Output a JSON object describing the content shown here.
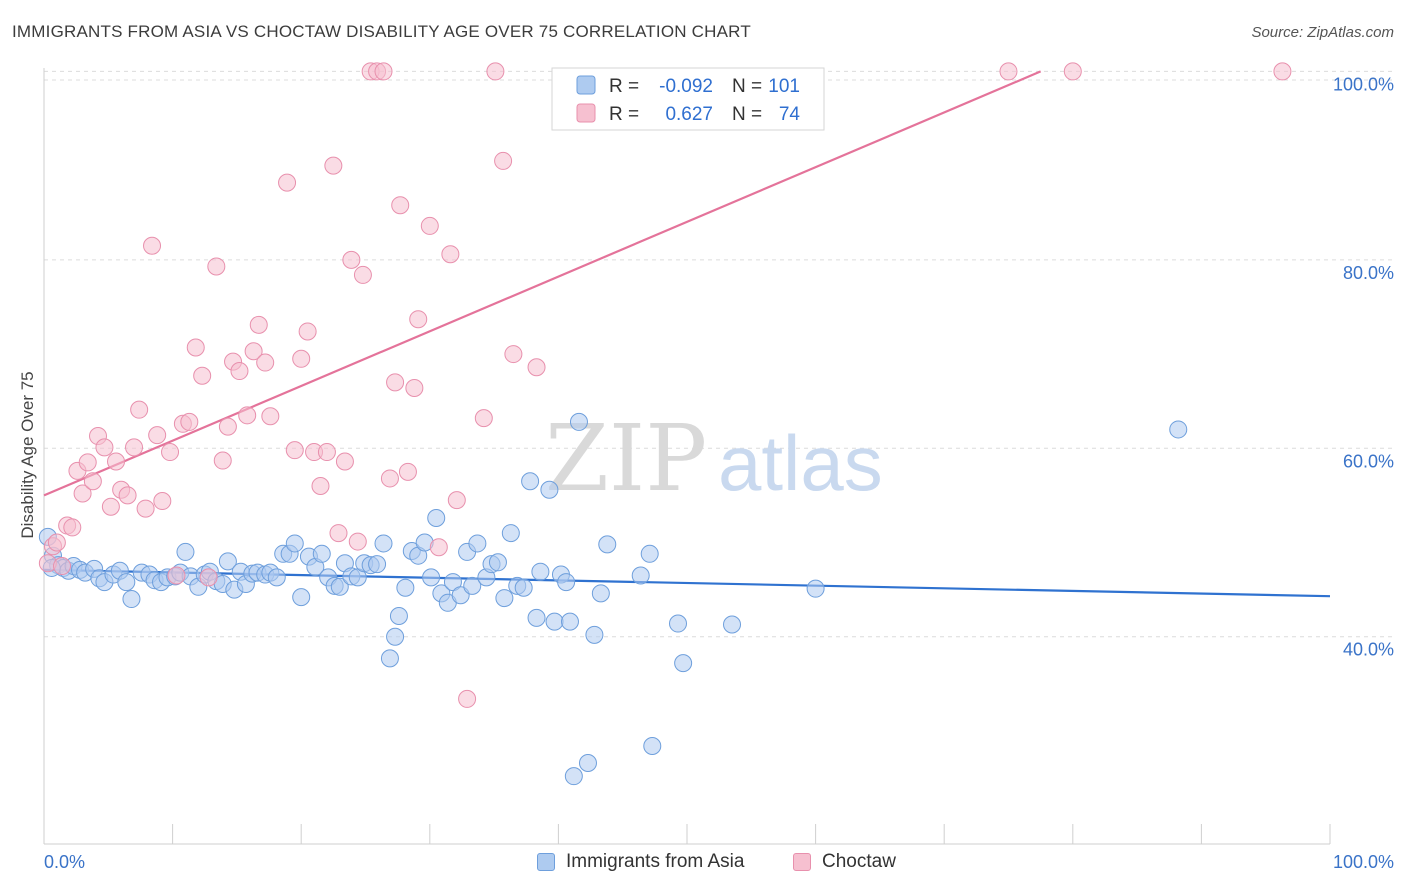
{
  "header": {
    "title": "IMMIGRANTS FROM ASIA VS CHOCTAW DISABILITY AGE OVER 75 CORRELATION CHART",
    "source": "Source: ZipAtlas.com"
  },
  "watermark": {
    "zip": "ZIP",
    "atlas": "atlas"
  },
  "legend_top": {
    "rows": [
      {
        "r_label": "R =",
        "r_value": "-0.092",
        "n_label": "N =",
        "n_value": "101"
      },
      {
        "r_label": "R =",
        "r_value": "0.627",
        "n_label": "N =",
        "n_value": "74"
      }
    ]
  },
  "colors": {
    "asia_fill": "#aecbf0",
    "asia_stroke": "#6e9fdc",
    "asia_line": "#2f72d0",
    "choctaw_fill": "#f6c0d0",
    "choctaw_stroke": "#e890ad",
    "choctaw_line": "#e4739a",
    "tick_label": "#3a73c8",
    "grid": "#dcdcdc"
  },
  "chart_data": {
    "type": "scatter",
    "title": "IMMIGRANTS FROM ASIA VS CHOCTAW DISABILITY AGE OVER 75 CORRELATION CHART",
    "xlabel": "",
    "ylabel": "Disability Age Over 75",
    "xlim": [
      0,
      100
    ],
    "ylim": [
      18,
      101
    ],
    "x_tick_labels": [
      "0.0%",
      "100.0%"
    ],
    "y_ticks": [
      40,
      60,
      80,
      100
    ],
    "y_tick_labels": [
      "40.0%",
      "60.0%",
      "80.0%",
      "100.0%"
    ],
    "grid": true,
    "legend_position": "top-center",
    "series": [
      {
        "name": "Immigrants from Asia",
        "r": -0.092,
        "n": 101,
        "trend": {
          "x": [
            0,
            100
          ],
          "y": [
            47.1,
            44.3
          ]
        },
        "points": [
          [
            0.3,
            50.6
          ],
          [
            0.7,
            48.6
          ],
          [
            1.1,
            47.6
          ],
          [
            1.5,
            47.3
          ],
          [
            1.9,
            47.0
          ],
          [
            2.3,
            47.5
          ],
          [
            2.8,
            47.1
          ],
          [
            3.2,
            46.8
          ],
          [
            3.9,
            47.2
          ],
          [
            4.3,
            46.2
          ],
          [
            4.7,
            45.8
          ],
          [
            5.4,
            46.6
          ],
          [
            5.9,
            47.0
          ],
          [
            6.4,
            45.8
          ],
          [
            6.8,
            44.0
          ],
          [
            7.6,
            46.8
          ],
          [
            8.2,
            46.6
          ],
          [
            8.6,
            46.0
          ],
          [
            9.1,
            45.8
          ],
          [
            9.6,
            46.3
          ],
          [
            10.2,
            46.4
          ],
          [
            10.6,
            46.8
          ],
          [
            11.0,
            49.0
          ],
          [
            11.4,
            46.4
          ],
          [
            12.0,
            45.3
          ],
          [
            12.5,
            46.6
          ],
          [
            12.9,
            46.9
          ],
          [
            13.4,
            45.9
          ],
          [
            13.9,
            45.6
          ],
          [
            14.3,
            48.0
          ],
          [
            14.8,
            45.0
          ],
          [
            15.3,
            46.9
          ],
          [
            15.7,
            45.6
          ],
          [
            16.2,
            46.7
          ],
          [
            16.6,
            46.8
          ],
          [
            17.2,
            46.6
          ],
          [
            17.6,
            46.8
          ],
          [
            18.1,
            46.3
          ],
          [
            18.6,
            48.8
          ],
          [
            19.1,
            48.8
          ],
          [
            19.5,
            49.9
          ],
          [
            20.0,
            44.2
          ],
          [
            20.6,
            48.5
          ],
          [
            21.1,
            47.4
          ],
          [
            21.6,
            48.8
          ],
          [
            22.1,
            46.3
          ],
          [
            22.6,
            45.4
          ],
          [
            23.0,
            45.3
          ],
          [
            23.4,
            47.8
          ],
          [
            23.9,
            46.4
          ],
          [
            24.4,
            46.3
          ],
          [
            24.9,
            47.8
          ],
          [
            25.4,
            47.6
          ],
          [
            25.9,
            47.7
          ],
          [
            26.4,
            49.9
          ],
          [
            26.9,
            37.7
          ],
          [
            27.3,
            40.0
          ],
          [
            27.6,
            42.2
          ],
          [
            28.1,
            45.2
          ],
          [
            28.6,
            49.1
          ],
          [
            29.1,
            48.6
          ],
          [
            29.6,
            50.0
          ],
          [
            30.1,
            46.3
          ],
          [
            30.5,
            52.6
          ],
          [
            30.9,
            44.6
          ],
          [
            31.4,
            43.6
          ],
          [
            31.8,
            45.8
          ],
          [
            32.4,
            44.4
          ],
          [
            32.9,
            49.0
          ],
          [
            33.3,
            45.4
          ],
          [
            33.7,
            49.9
          ],
          [
            34.4,
            46.3
          ],
          [
            34.8,
            47.7
          ],
          [
            35.3,
            47.9
          ],
          [
            35.8,
            44.1
          ],
          [
            36.3,
            51.0
          ],
          [
            36.8,
            45.4
          ],
          [
            37.3,
            45.2
          ],
          [
            37.8,
            56.5
          ],
          [
            38.3,
            42.0
          ],
          [
            38.6,
            46.9
          ],
          [
            39.3,
            55.6
          ],
          [
            39.7,
            41.6
          ],
          [
            40.2,
            46.6
          ],
          [
            40.6,
            45.8
          ],
          [
            40.9,
            41.6
          ],
          [
            41.2,
            25.2
          ],
          [
            41.6,
            62.8
          ],
          [
            42.3,
            26.6
          ],
          [
            42.8,
            40.2
          ],
          [
            43.3,
            44.6
          ],
          [
            43.8,
            49.8
          ],
          [
            46.4,
            46.5
          ],
          [
            47.1,
            48.8
          ],
          [
            47.3,
            28.4
          ],
          [
            49.3,
            41.4
          ],
          [
            49.7,
            37.2
          ],
          [
            53.5,
            41.3
          ],
          [
            88.2,
            62.0
          ],
          [
            60.0,
            45.1
          ],
          [
            0.6,
            47.3
          ]
        ]
      },
      {
        "name": "Choctaw",
        "r": 0.627,
        "n": 74,
        "trend": {
          "x": [
            0,
            77.5
          ],
          "y": [
            55.0,
            100.0
          ]
        },
        "points": [
          [
            0.3,
            47.8
          ],
          [
            0.7,
            49.6
          ],
          [
            1.0,
            50.0
          ],
          [
            1.4,
            47.5
          ],
          [
            1.8,
            51.8
          ],
          [
            2.2,
            51.6
          ],
          [
            2.6,
            57.6
          ],
          [
            3.0,
            55.2
          ],
          [
            3.4,
            58.5
          ],
          [
            3.8,
            56.5
          ],
          [
            4.2,
            61.3
          ],
          [
            4.7,
            60.1
          ],
          [
            5.2,
            53.8
          ],
          [
            5.6,
            58.6
          ],
          [
            6.0,
            55.6
          ],
          [
            6.5,
            55.0
          ],
          [
            7.0,
            60.1
          ],
          [
            7.4,
            64.1
          ],
          [
            7.9,
            53.6
          ],
          [
            8.4,
            81.5
          ],
          [
            8.8,
            61.4
          ],
          [
            9.2,
            54.4
          ],
          [
            9.8,
            59.6
          ],
          [
            10.3,
            46.5
          ],
          [
            10.8,
            62.6
          ],
          [
            11.3,
            62.8
          ],
          [
            11.8,
            70.7
          ],
          [
            12.3,
            67.7
          ],
          [
            12.8,
            46.3
          ],
          [
            13.4,
            79.3
          ],
          [
            13.9,
            58.7
          ],
          [
            14.3,
            62.3
          ],
          [
            14.7,
            69.2
          ],
          [
            15.2,
            68.2
          ],
          [
            15.8,
            63.5
          ],
          [
            16.3,
            70.3
          ],
          [
            16.7,
            73.1
          ],
          [
            17.2,
            69.1
          ],
          [
            17.6,
            63.4
          ],
          [
            18.9,
            88.2
          ],
          [
            19.5,
            59.8
          ],
          [
            20.0,
            69.5
          ],
          [
            20.5,
            72.4
          ],
          [
            21.0,
            59.6
          ],
          [
            21.5,
            56.0
          ],
          [
            22.0,
            59.6
          ],
          [
            22.5,
            90.0
          ],
          [
            22.9,
            51.0
          ],
          [
            23.4,
            58.6
          ],
          [
            23.9,
            80.0
          ],
          [
            24.4,
            50.1
          ],
          [
            24.8,
            78.4
          ],
          [
            25.4,
            100.0
          ],
          [
            25.9,
            100.0
          ],
          [
            26.4,
            100.0
          ],
          [
            26.9,
            56.8
          ],
          [
            27.3,
            67.0
          ],
          [
            27.7,
            85.8
          ],
          [
            28.3,
            57.5
          ],
          [
            28.8,
            66.4
          ],
          [
            29.1,
            73.7
          ],
          [
            30.0,
            83.6
          ],
          [
            30.7,
            49.5
          ],
          [
            31.6,
            80.6
          ],
          [
            32.1,
            54.5
          ],
          [
            32.9,
            33.4
          ],
          [
            34.2,
            63.2
          ],
          [
            35.1,
            100.0
          ],
          [
            35.7,
            90.5
          ],
          [
            36.5,
            70.0
          ],
          [
            38.3,
            68.6
          ],
          [
            75.0,
            100.0
          ],
          [
            80.0,
            100.0
          ],
          [
            96.3,
            100.0
          ]
        ]
      }
    ]
  }
}
